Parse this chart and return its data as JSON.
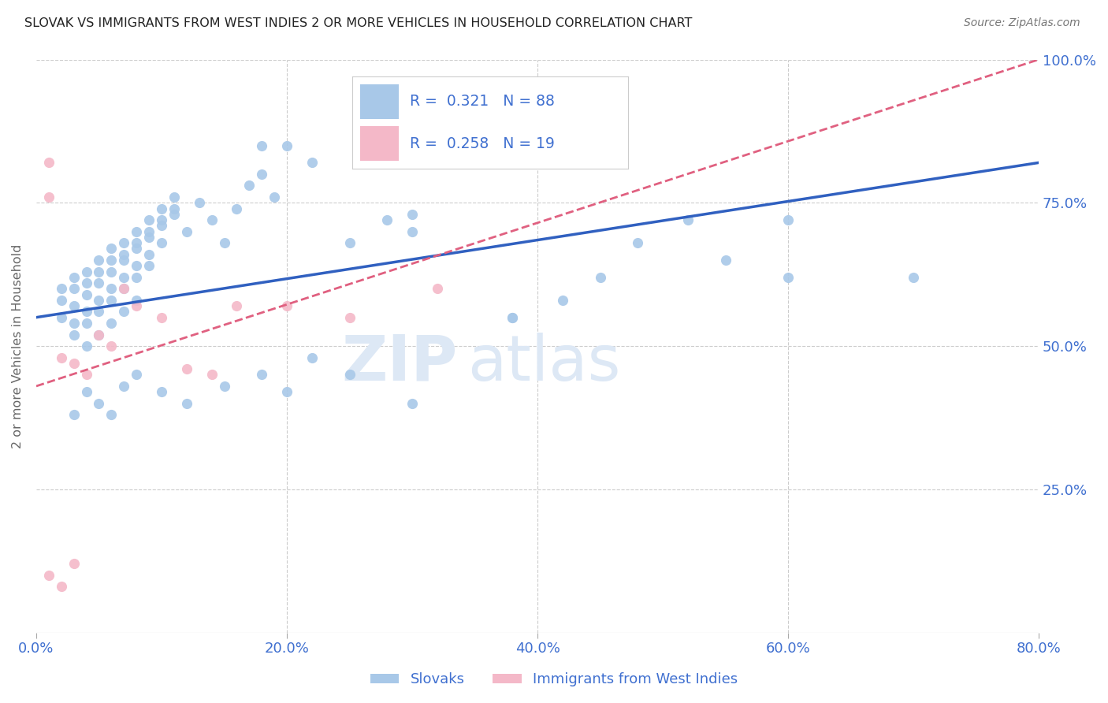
{
  "title": "SLOVAK VS IMMIGRANTS FROM WEST INDIES 2 OR MORE VEHICLES IN HOUSEHOLD CORRELATION CHART",
  "source": "Source: ZipAtlas.com",
  "ylabel": "2 or more Vehicles in Household",
  "legend_blue_r": "0.321",
  "legend_blue_n": "88",
  "legend_pink_r": "0.258",
  "legend_pink_n": "19",
  "blue_color": "#a8c8e8",
  "pink_color": "#f4b8c8",
  "blue_line_color": "#3060c0",
  "pink_line_color": "#e06080",
  "pink_dash_color": "#e8a0b0",
  "watermark_color": "#dde8f5",
  "background_color": "#ffffff",
  "grid_color": "#cccccc",
  "axis_color": "#4070d0",
  "title_color": "#222222",
  "ylabel_color": "#666666",
  "blue_scatter_x": [
    2,
    3,
    4,
    5,
    6,
    7,
    8,
    9,
    10,
    11,
    2,
    3,
    4,
    5,
    6,
    7,
    8,
    9,
    10,
    11,
    2,
    3,
    4,
    5,
    6,
    7,
    8,
    9,
    10,
    11,
    3,
    4,
    5,
    6,
    7,
    8,
    9,
    10,
    3,
    4,
    5,
    6,
    7,
    8,
    9,
    4,
    5,
    6,
    7,
    8,
    12,
    13,
    14,
    15,
    16,
    17,
    18,
    19,
    20,
    25,
    28,
    30,
    38,
    42,
    45,
    55,
    60,
    70
  ],
  "blue_scatter_y": [
    60,
    62,
    63,
    65,
    67,
    68,
    70,
    72,
    74,
    76,
    58,
    60,
    61,
    63,
    65,
    66,
    68,
    70,
    72,
    74,
    55,
    57,
    59,
    61,
    63,
    65,
    67,
    69,
    71,
    73,
    54,
    56,
    58,
    60,
    62,
    64,
    66,
    68,
    52,
    54,
    56,
    58,
    60,
    62,
    64,
    50,
    52,
    54,
    56,
    58,
    70,
    75,
    72,
    68,
    74,
    78,
    80,
    76,
    85,
    68,
    72,
    70,
    55,
    58,
    62,
    65,
    72,
    62
  ],
  "blue_scatter_outliers_x": [
    18,
    22,
    30,
    38,
    48,
    52,
    60
  ],
  "blue_scatter_outliers_y": [
    85,
    82,
    73,
    55,
    68,
    72,
    62
  ],
  "blue_low_x": [
    3,
    4,
    5,
    6,
    7,
    8,
    10,
    12,
    15,
    18,
    20,
    22,
    25,
    30
  ],
  "blue_low_y": [
    38,
    42,
    40,
    38,
    43,
    45,
    42,
    40,
    43,
    45,
    42,
    48,
    45,
    40
  ],
  "pink_scatter_x": [
    1,
    1,
    1,
    2,
    2,
    3,
    3,
    4,
    5,
    6,
    7,
    8,
    10,
    12,
    14,
    16,
    20,
    25,
    32
  ],
  "pink_scatter_y": [
    82,
    76,
    10,
    8,
    48,
    47,
    12,
    45,
    52,
    50,
    60,
    57,
    55,
    46,
    45,
    57,
    57,
    55,
    60
  ],
  "blue_line_x0": 0,
  "blue_line_x1": 80,
  "blue_line_y0": 55,
  "blue_line_y1": 82,
  "pink_line_x0": 0,
  "pink_line_x1": 80,
  "pink_line_y0": 43,
  "pink_line_y1": 100,
  "xlim": [
    0,
    80
  ],
  "ylim": [
    0,
    100
  ],
  "xticks": [
    0,
    20,
    40,
    60,
    80
  ],
  "yticks_right": [
    25,
    50,
    75,
    100
  ]
}
